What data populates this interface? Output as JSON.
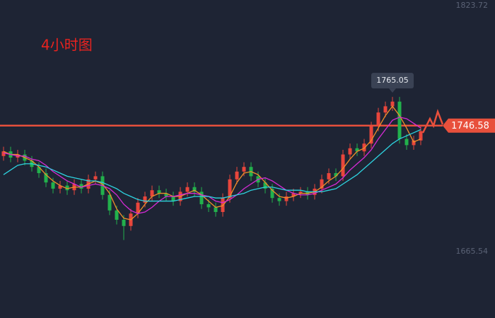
{
  "chart_data": {
    "type": "candlestick",
    "title": "4小时图",
    "ylim": [
      1665.54,
      1823.72
    ],
    "yticks": [
      1665.54,
      1823.72
    ],
    "up_color": "#e8463c",
    "down_color": "#22b14c",
    "current_price": 1746.58,
    "current_price_color": "#e8503c",
    "open": [
      1727,
      1730,
      1726,
      1728,
      1724,
      1720,
      1716,
      1710,
      1706,
      1708,
      1705,
      1709,
      1706,
      1712,
      1714,
      1702,
      1692,
      1686,
      1682,
      1690,
      1697,
      1701,
      1705,
      1703,
      1701,
      1698,
      1704,
      1707,
      1704,
      1696,
      1694,
      1691,
      1700,
      1712,
      1717,
      1720,
      1714,
      1710,
      1706,
      1700,
      1698,
      1701,
      1703,
      1704,
      1702,
      1706,
      1712,
      1716,
      1714,
      1728,
      1732,
      1730,
      1735,
      1746,
      1755,
      1759,
      1762,
      1738,
      1734,
      1737
    ],
    "high": [
      1733,
      1733,
      1731,
      1731,
      1727,
      1723,
      1719,
      1713,
      1711,
      1711,
      1712,
      1712,
      1715,
      1717,
      1717,
      1705,
      1695,
      1689,
      1693,
      1700,
      1704,
      1708,
      1708,
      1706,
      1704,
      1707,
      1710,
      1710,
      1707,
      1699,
      1697,
      1703,
      1715,
      1720,
      1723,
      1723,
      1717,
      1713,
      1709,
      1703,
      1704,
      1706,
      1707,
      1707,
      1709,
      1715,
      1719,
      1719,
      1731,
      1735,
      1735,
      1738,
      1749,
      1758,
      1762,
      1765.05,
      1765,
      1741,
      1740,
      1746
    ],
    "low": [
      1724,
      1723,
      1723,
      1721,
      1717,
      1713,
      1707,
      1703,
      1703,
      1702,
      1702,
      1703,
      1703,
      1709,
      1699,
      1689,
      1683,
      1673,
      1679,
      1687,
      1694,
      1698,
      1700,
      1698,
      1695,
      1695,
      1701,
      1701,
      1693,
      1691,
      1688,
      1688,
      1697,
      1709,
      1714,
      1711,
      1707,
      1703,
      1697,
      1695,
      1695,
      1698,
      1700,
      1699,
      1699,
      1703,
      1709,
      1711,
      1711,
      1725,
      1727,
      1727,
      1732,
      1743,
      1752,
      1756,
      1735,
      1731,
      1731,
      1734
    ],
    "close": [
      1730,
      1726,
      1728,
      1724,
      1720,
      1716,
      1710,
      1706,
      1708,
      1705,
      1709,
      1706,
      1712,
      1714,
      1702,
      1692,
      1686,
      1682,
      1690,
      1697,
      1701,
      1705,
      1703,
      1701,
      1698,
      1704,
      1707,
      1704,
      1696,
      1694,
      1691,
      1700,
      1712,
      1717,
      1720,
      1714,
      1710,
      1706,
      1700,
      1698,
      1701,
      1703,
      1704,
      1702,
      1706,
      1712,
      1716,
      1714,
      1728,
      1732,
      1730,
      1735,
      1746,
      1755,
      1759,
      1762,
      1738,
      1734,
      1737,
      1743
    ],
    "series": [
      {
        "color": "#f0902a",
        "values": [
          1730,
          1728,
          1728,
          1726,
          1724,
          1720,
          1715,
          1711,
          1708,
          1706,
          1707,
          1707,
          1709,
          1711,
          1709,
          1703,
          1693,
          1687,
          1686,
          1690,
          1696,
          1701,
          1703,
          1703,
          1701,
          1701,
          1703,
          1705,
          1702,
          1698,
          1694,
          1695,
          1701,
          1710,
          1716,
          1717,
          1715,
          1710,
          1705,
          1701,
          1700,
          1701,
          1703,
          1703,
          1704,
          1707,
          1711,
          1714,
          1719,
          1725,
          1730,
          1732,
          1737,
          1745,
          1753,
          1759,
          1753,
          1745,
          1736,
          1738
        ]
      },
      {
        "color": "#d62ad6",
        "values": [
          1729,
          1728,
          1727,
          1727,
          1725,
          1724,
          1721,
          1717,
          1714,
          1711,
          1709,
          1707,
          1708,
          1709,
          1708,
          1706,
          1702,
          1696,
          1692,
          1690,
          1691,
          1694,
          1698,
          1701,
          1701,
          1702,
          1703,
          1703,
          1702,
          1701,
          1698,
          1697,
          1699,
          1702,
          1706,
          1709,
          1712,
          1713,
          1711,
          1708,
          1705,
          1703,
          1702,
          1702,
          1703,
          1705,
          1707,
          1709,
          1713,
          1718,
          1722,
          1726,
          1731,
          1738,
          1744,
          1750,
          1752,
          1751,
          1748,
          1745
        ]
      },
      {
        "color": "#2ed3e0",
        "values": [
          1715,
          1718,
          1721,
          1722,
          1722,
          1721,
          1720,
          1718,
          1716,
          1714,
          1713,
          1712,
          1711,
          1711,
          1710,
          1708,
          1706,
          1703,
          1701,
          1699,
          1698,
          1698,
          1698,
          1698,
          1698,
          1699,
          1700,
          1701,
          1701,
          1701,
          1700,
          1700,
          1701,
          1702,
          1703,
          1705,
          1706,
          1707,
          1707,
          1706,
          1705,
          1705,
          1705,
          1704,
          1704,
          1704,
          1705,
          1706,
          1709,
          1712,
          1715,
          1719,
          1723,
          1727,
          1731,
          1735,
          1738,
          1740,
          1742,
          1744
        ]
      }
    ]
  }
}
